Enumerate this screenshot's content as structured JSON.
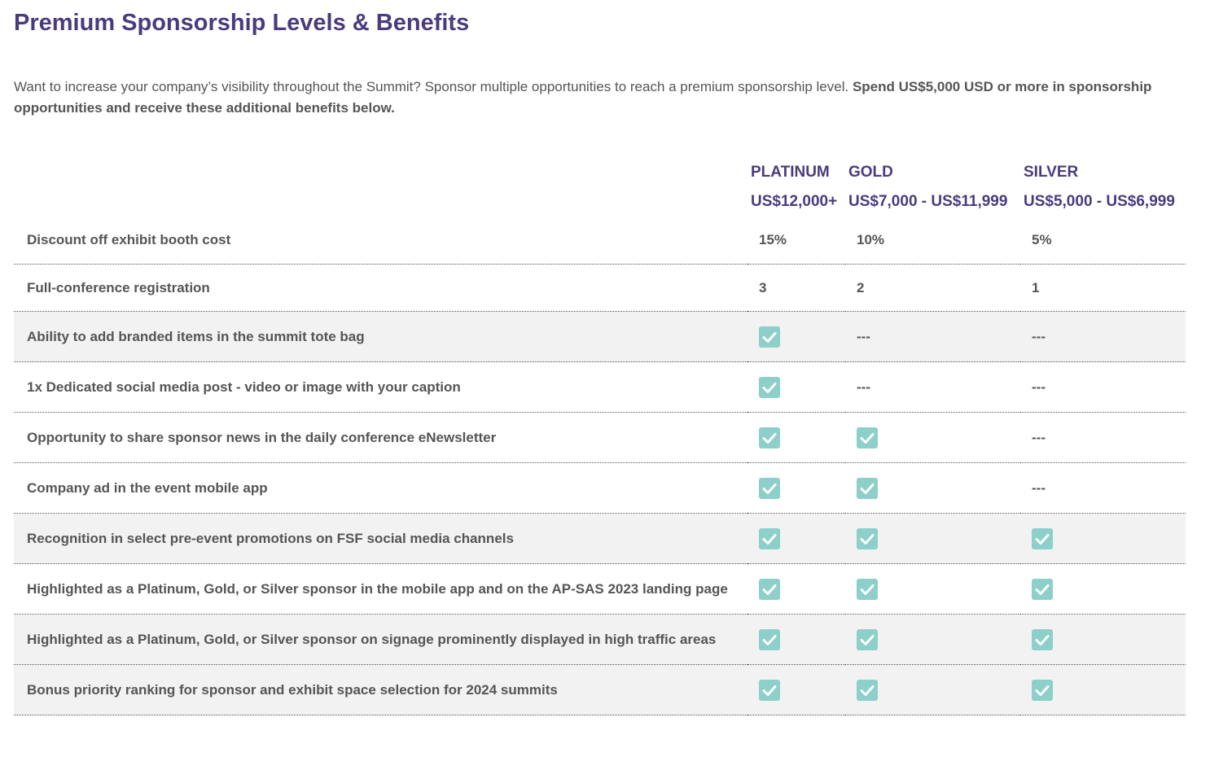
{
  "header": {
    "title": "Premium Sponsorship Levels & Benefits"
  },
  "intro": {
    "text": "Want to increase your company’s visibility throughout the Summit? Sponsor multiple opportunities to reach a premium sponsorship level. ",
    "bold": "Spend US$5,000 USD or more in sponsorship opportunities and receive these additional benefits below."
  },
  "table": {
    "columns": [
      {
        "level": "PLATINUM",
        "price": "US$12,000+"
      },
      {
        "level": "GOLD",
        "price": "US$7,000 - US$11,999"
      },
      {
        "level": "SILVER",
        "price": "US$5,000 - US$6,999"
      }
    ],
    "rows": [
      {
        "label": "Discount off exhibit booth cost",
        "cells": [
          "15%",
          "10%",
          "5%"
        ]
      },
      {
        "label": "Full-conference registration",
        "cells": [
          "3",
          "2",
          "1"
        ]
      },
      {
        "label": "Ability to add branded items in the summit tote bag",
        "cells": [
          true,
          "---",
          "---"
        ]
      },
      {
        "label": "1x Dedicated social media post - video or image with your caption",
        "cells": [
          true,
          "---",
          "---"
        ]
      },
      {
        "label": "Opportunity to share sponsor news in the daily conference eNewsletter",
        "cells": [
          true,
          true,
          "---"
        ]
      },
      {
        "label": "Company ad in the event mobile app",
        "cells": [
          true,
          true,
          "---"
        ]
      },
      {
        "label": "Recognition in select pre-event promotions on FSF social media channels",
        "cells": [
          true,
          true,
          true
        ]
      },
      {
        "label": "Highlighted as a Platinum, Gold, or Silver sponsor in the mobile app and on the AP-SAS 2023 landing page",
        "cells": [
          true,
          true,
          true
        ]
      },
      {
        "label": "Highlighted as a Platinum, Gold, or Silver sponsor on signage prominently displayed in high traffic areas",
        "cells": [
          true,
          true,
          true
        ]
      },
      {
        "label": "Bonus priority ranking for sponsor and exhibit space selection for 2024 summits",
        "cells": [
          true,
          true,
          true
        ]
      }
    ]
  }
}
